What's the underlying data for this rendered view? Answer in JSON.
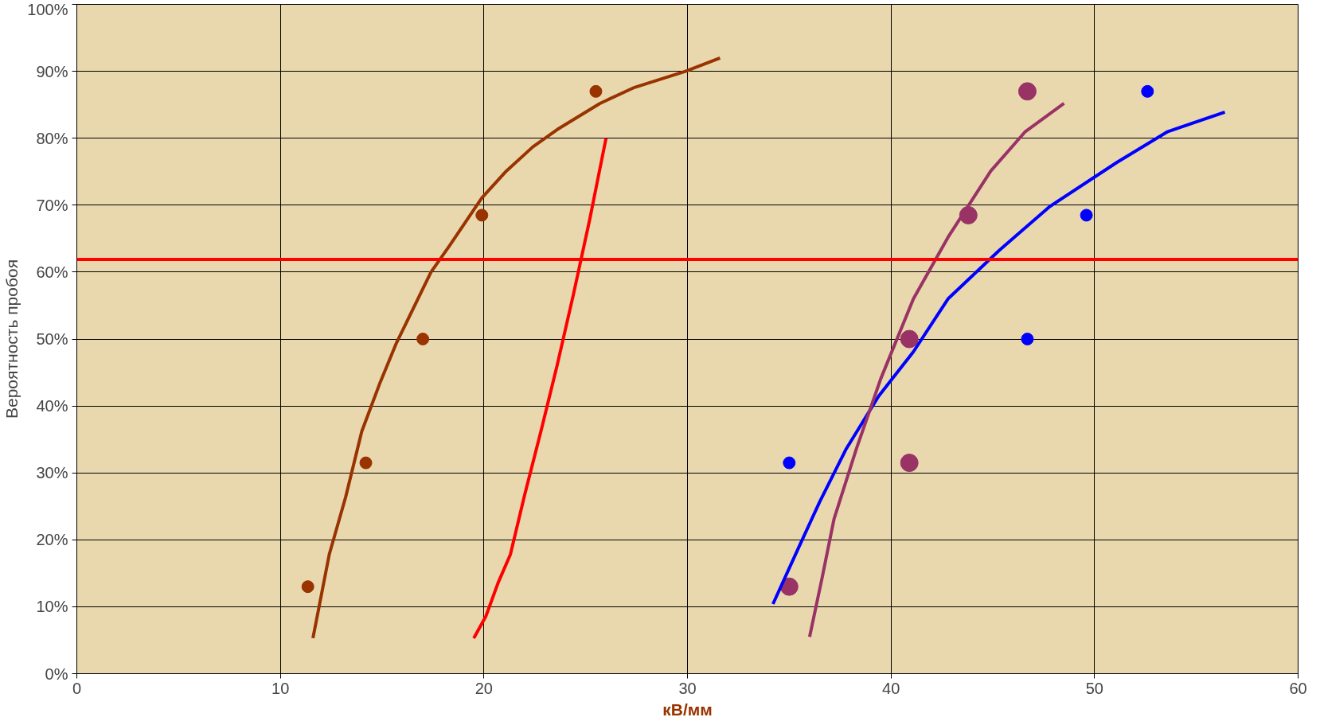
{
  "chart_data": {
    "type": "scatter",
    "xlabel": "кВ/мм",
    "ylabel": "Вероятность пробоя",
    "xlim": [
      0,
      60
    ],
    "ylim": [
      0,
      100
    ],
    "xticks": [
      0,
      10,
      20,
      30,
      40,
      50,
      60
    ],
    "yticks": [
      {
        "value": 0,
        "label": "0%"
      },
      {
        "value": 10,
        "label": "10%"
      },
      {
        "value": 20,
        "label": "20%"
      },
      {
        "value": 30,
        "label": "30%"
      },
      {
        "value": 40,
        "label": "40%"
      },
      {
        "value": 50,
        "label": "50%"
      },
      {
        "value": 60,
        "label": "60%"
      },
      {
        "value": 70,
        "label": "70%"
      },
      {
        "value": 80,
        "label": "80%"
      },
      {
        "value": 90,
        "label": "90%"
      },
      {
        "value": 100,
        "label": "100%"
      }
    ],
    "grid": true,
    "series": [
      {
        "marker": "circle",
        "color": "#993300",
        "x": [
          11.35,
          14.2,
          17.0,
          19.9,
          25.5
        ],
        "values": [
          13,
          31.5,
          50,
          68.5,
          87
        ]
      },
      {
        "marker": "circle",
        "color": "#0000ff",
        "x": [
          35.0,
          46.7,
          49.6,
          52.6
        ],
        "values": [
          31.5,
          50,
          68.5,
          87
        ]
      },
      {
        "marker": "circle",
        "color": "#993366",
        "x": [
          35.0,
          40.9,
          40.9,
          43.8,
          46.7
        ],
        "values": [
          13,
          31.5,
          50,
          68.5,
          87
        ]
      },
      {
        "type": "line",
        "color": "#993300",
        "x": [
          11.6,
          12.4,
          13.2,
          14.0,
          14.9,
          15.7,
          17.4,
          18.3,
          19.9,
          21.1,
          22.4,
          23.6,
          25.7,
          27.4,
          29.9,
          31.6
        ],
        "values": [
          5.3,
          17.8,
          26.3,
          36.2,
          43.5,
          49.4,
          60,
          63.9,
          71.1,
          75.1,
          78.7,
          81.3,
          85.2,
          87.6,
          90,
          92
        ]
      },
      {
        "type": "line",
        "color": "#ff0000",
        "x": [
          19.5,
          20.1,
          20.7,
          21.3,
          22.0,
          22.8,
          23.6,
          24.4,
          25.2,
          26.0
        ],
        "values": [
          5.3,
          8.6,
          13.6,
          17.8,
          26.7,
          36.2,
          46.1,
          56.7,
          67.9,
          80
        ]
      },
      {
        "type": "line",
        "color": "#0000ff",
        "x": [
          34.2,
          35.5,
          36.5,
          37.8,
          39.4,
          41.1,
          42.8,
          45.3,
          47.8,
          51.1,
          53.6,
          56.4
        ],
        "values": [
          10.4,
          19.1,
          25.7,
          33.6,
          41.5,
          48.1,
          56,
          63.2,
          69.8,
          76.4,
          81,
          83.9
        ]
      },
      {
        "type": "line",
        "color": "#993366",
        "x": [
          36.0,
          36.6,
          37.2,
          38.3,
          39.5,
          41.1,
          42.8,
          44.9,
          46.6,
          48.5
        ],
        "values": [
          5.5,
          14.1,
          23.1,
          33.6,
          44.1,
          56,
          65.2,
          75.1,
          81,
          85.2
        ]
      }
    ],
    "ref_lines": [
      {
        "axis": "y",
        "value": 61.9,
        "color": "#ff0000"
      }
    ]
  }
}
